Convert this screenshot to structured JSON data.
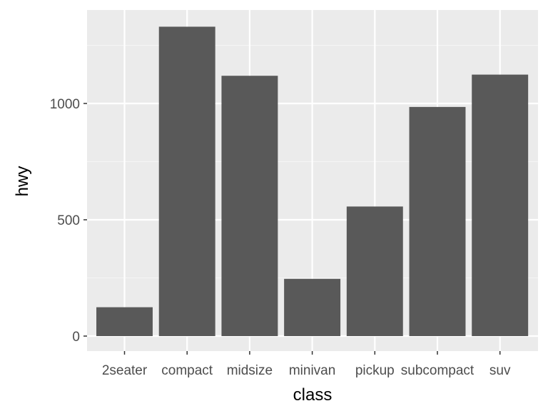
{
  "chart_data": {
    "type": "bar",
    "title": "",
    "xlabel": "class",
    "ylabel": "hwy",
    "categories": [
      "2seater",
      "compact",
      "midsize",
      "minivan",
      "pickup",
      "subcompact",
      "suv"
    ],
    "values": [
      124,
      1330,
      1119,
      246,
      557,
      985,
      1124
    ],
    "ylim": [
      0,
      1400
    ],
    "yticks": [
      0,
      500,
      1000
    ],
    "ytick_labels": [
      "0",
      "500",
      "1000"
    ],
    "grid": true,
    "legend": "none",
    "colors": {
      "bar": "#595959",
      "panel": "#ebebeb",
      "grid_major": "#ffffff",
      "grid_minor": "#f5f5f5",
      "tick": "#333333"
    }
  }
}
